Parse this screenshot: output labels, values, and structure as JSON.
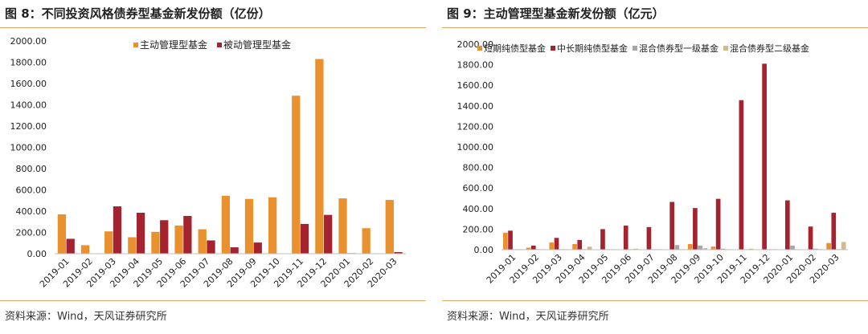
{
  "colors": {
    "orange": "#E8912E",
    "darkred": "#A5232F",
    "gray": "#A6A6A6",
    "tan": "#D6B98A",
    "rule": "#E0A86A"
  },
  "left": {
    "title": "图 8：不同投资风格债券型基金新发份额（亿份）",
    "source": "资料来源：Wind，天风证券研究所"
  },
  "right": {
    "title": "图 9：主动管理型基金新发份额（亿元）",
    "source": "资料来源：Wind，天风证券研究所"
  },
  "chart_data": [
    {
      "type": "bar",
      "categories": [
        "2019-01",
        "2019-02",
        "2019-03",
        "2019-04",
        "2019-05",
        "2019-06",
        "2019-07",
        "2019-08",
        "2019-09",
        "2019-10",
        "2019-11",
        "2019-12",
        "2020-01",
        "2020-02",
        "2020-03"
      ],
      "series": [
        {
          "name": "主动管理型基金",
          "color": "#E8912E",
          "values": [
            370,
            80,
            210,
            155,
            205,
            265,
            230,
            545,
            515,
            530,
            1485,
            1830,
            520,
            240,
            505
          ]
        },
        {
          "name": "被动管理型基金",
          "color": "#A5232F",
          "values": [
            140,
            0,
            445,
            385,
            315,
            355,
            125,
            60,
            105,
            0,
            280,
            365,
            5,
            0,
            15
          ]
        }
      ],
      "ylim": [
        0,
        2000
      ],
      "yticks": [
        0,
        200,
        400,
        600,
        800,
        1000,
        1200,
        1400,
        1600,
        1800,
        2000
      ],
      "ytick_labels": [
        "0.00",
        "200.00",
        "400.00",
        "600.00",
        "800.00",
        "1000.00",
        "1200.00",
        "1400.00",
        "1600.00",
        "1800.00",
        "2000.00"
      ],
      "legend_position": "top-center",
      "grid": false
    },
    {
      "type": "bar",
      "categories": [
        "2019-01",
        "2019-02",
        "2019-03",
        "2019-04",
        "2019-05",
        "2019-06",
        "2019-07",
        "2019-08",
        "2019-09",
        "2019-10",
        "2019-11",
        "2019-12",
        "2020-01",
        "2020-02",
        "2020-03"
      ],
      "series": [
        {
          "name": "短期纯债型基金",
          "color": "#E8912E",
          "values": [
            165,
            20,
            70,
            55,
            0,
            0,
            0,
            0,
            55,
            30,
            0,
            0,
            0,
            0,
            65
          ]
        },
        {
          "name": "中长期纯债型基金",
          "color": "#A5232F",
          "values": [
            185,
            40,
            115,
            95,
            200,
            235,
            220,
            465,
            405,
            495,
            1455,
            1810,
            480,
            225,
            360
          ]
        },
        {
          "name": "混合债券型一级基金",
          "color": "#A6A6A6",
          "values": [
            5,
            5,
            5,
            5,
            5,
            5,
            5,
            45,
            40,
            10,
            5,
            5,
            40,
            10,
            5
          ]
        },
        {
          "name": "混合债券型二级基金",
          "color": "#D6B98A",
          "values": [
            5,
            5,
            5,
            30,
            5,
            10,
            5,
            5,
            15,
            5,
            10,
            5,
            5,
            5,
            75
          ]
        }
      ],
      "ylim": [
        0,
        2000
      ],
      "yticks": [
        0,
        200,
        400,
        600,
        800,
        1000,
        1200,
        1400,
        1600,
        1800,
        2000
      ],
      "ytick_labels": [
        "0.00",
        "200.00",
        "400.00",
        "600.00",
        "800.00",
        "1000.00",
        "1200.00",
        "1400.00",
        "1600.00",
        "1800.00",
        "2000.00"
      ],
      "legend_position": "top",
      "grid": false
    }
  ]
}
